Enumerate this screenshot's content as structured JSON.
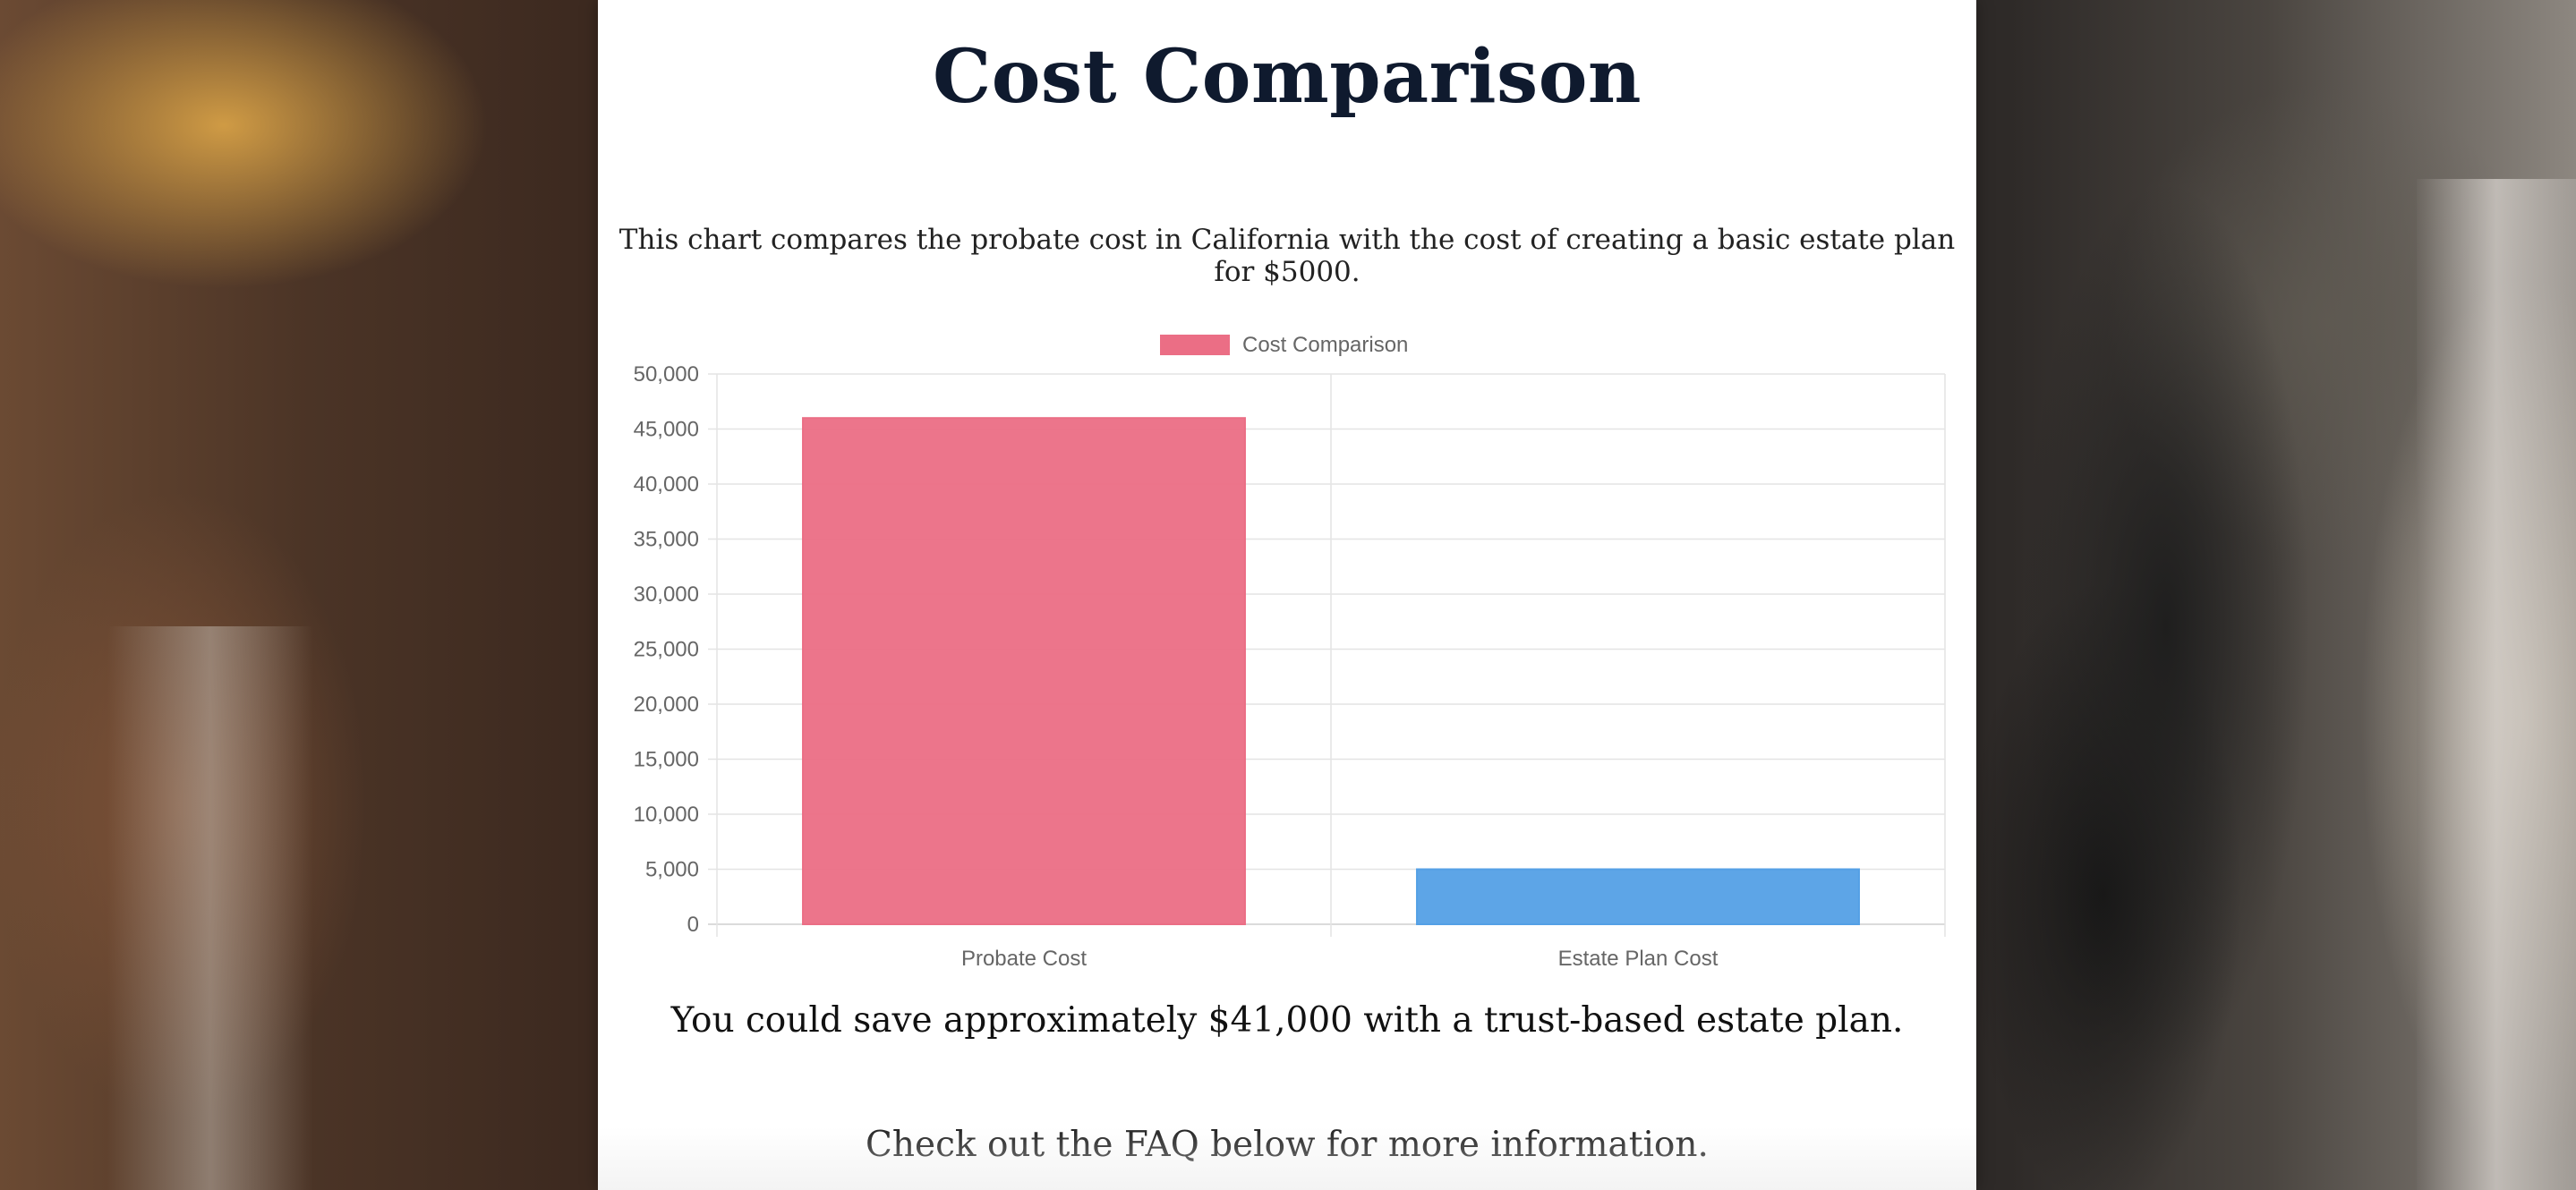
{
  "page": {
    "title": "Cost Comparison",
    "intro": "This chart compares the probate cost in California with the cost of creating a basic estate plan for $5000.",
    "savings": "You could save approximately $41,000 with a trust-based estate plan.",
    "faq_note": "Check out the FAQ below for more information."
  },
  "chart_data": {
    "type": "bar",
    "categories": [
      "Probate Cost",
      "Estate Plan Cost"
    ],
    "series": [
      {
        "name": "Cost Comparison",
        "values": [
          46000,
          5000
        ],
        "colors": [
          "#eb6e85",
          "#54a0e6"
        ]
      }
    ],
    "ylim": [
      0,
      50000
    ],
    "yticks": [
      "0",
      "5,000",
      "10,000",
      "15,000",
      "20,000",
      "25,000",
      "30,000",
      "35,000",
      "40,000",
      "45,000",
      "50,000"
    ],
    "legend_position": "top-center",
    "legend_color": "#eb6e85",
    "grid": true
  }
}
